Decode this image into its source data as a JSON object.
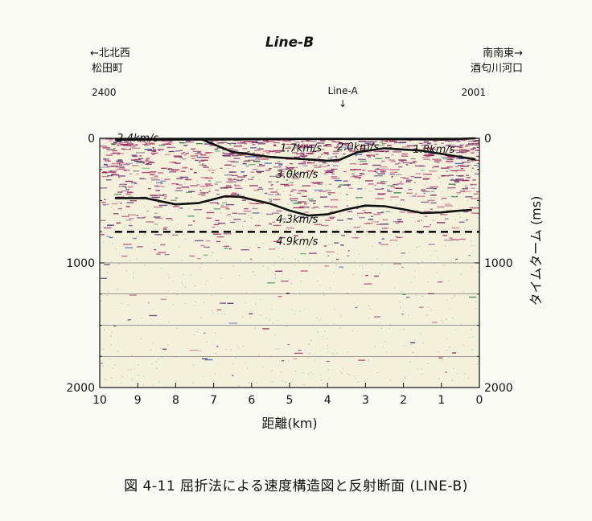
{
  "chart_data": {
    "type": "seismic-section",
    "title": "Line-B",
    "left_end": {
      "direction": "←北北西",
      "place": "松田町",
      "shot": "2400"
    },
    "right_end": {
      "direction": "南南東→",
      "place": "酒匂川河口",
      "shot": "2001"
    },
    "marker": {
      "label": "Line-A",
      "arrow": "↓",
      "x_km": 3.6
    },
    "xlabel": "距離(km)",
    "ylabel": "タイムターム (ms)",
    "xlim": [
      10,
      0
    ],
    "ylim": [
      0,
      2000
    ],
    "x_ticks": [
      "10",
      "9",
      "8",
      "7",
      "6",
      "5",
      "4",
      "3",
      "2",
      "1",
      "0"
    ],
    "y_ticks": [
      "0",
      "1000",
      "2000"
    ],
    "gridlines_ms": [
      1000,
      1250,
      1500,
      1750
    ],
    "velocity_labels": [
      {
        "text": "2.4km/s",
        "x_km": 9.0,
        "t_ms": 0
      },
      {
        "text": "1.7km/s",
        "x_km": 4.7,
        "t_ms": 80
      },
      {
        "text": "2.0km/s",
        "x_km": 3.2,
        "t_ms": 70
      },
      {
        "text": "1.8km/s",
        "x_km": 1.2,
        "t_ms": 90
      },
      {
        "text": "3.0km/s",
        "x_km": 4.8,
        "t_ms": 290
      },
      {
        "text": "4.3km/s",
        "x_km": 4.8,
        "t_ms": 650
      },
      {
        "text": "4.9km/s",
        "x_km": 4.8,
        "t_ms": 830
      }
    ],
    "boundaries": [
      {
        "name": "surface",
        "style": "solid",
        "points": [
          [
            9.6,
            10
          ],
          [
            7.0,
            10
          ],
          [
            5.0,
            5
          ],
          [
            3.0,
            5
          ],
          [
            1.0,
            10
          ],
          [
            0.1,
            0
          ]
        ]
      },
      {
        "name": "layer-1-base",
        "style": "solid",
        "points": [
          [
            7.3,
            10
          ],
          [
            6.5,
            110
          ],
          [
            5.5,
            150
          ],
          [
            4.5,
            170
          ],
          [
            4.0,
            180
          ],
          [
            3.7,
            175
          ],
          [
            3.2,
            110
          ],
          [
            2.5,
            80
          ],
          [
            1.5,
            100
          ],
          [
            0.1,
            170
          ]
        ]
      },
      {
        "name": "3.0-4.3-interface",
        "style": "solid",
        "points": [
          [
            9.6,
            480
          ],
          [
            8.8,
            480
          ],
          [
            8.0,
            530
          ],
          [
            7.4,
            520
          ],
          [
            6.7,
            465
          ],
          [
            6.3,
            470
          ],
          [
            5.5,
            525
          ],
          [
            5.0,
            580
          ],
          [
            4.5,
            620
          ],
          [
            4.0,
            610
          ],
          [
            3.5,
            570
          ],
          [
            3.0,
            540
          ],
          [
            2.5,
            545
          ],
          [
            2.0,
            570
          ],
          [
            1.5,
            600
          ],
          [
            1.0,
            595
          ],
          [
            0.5,
            580
          ],
          [
            0.2,
            575
          ]
        ]
      },
      {
        "name": "4.3-4.9-interface",
        "style": "dashed",
        "points": [
          [
            9.6,
            750
          ],
          [
            0.0,
            750
          ]
        ]
      }
    ]
  },
  "caption": "図 4-11 屈折法による速度構造図と反射断面 (LINE-B)"
}
